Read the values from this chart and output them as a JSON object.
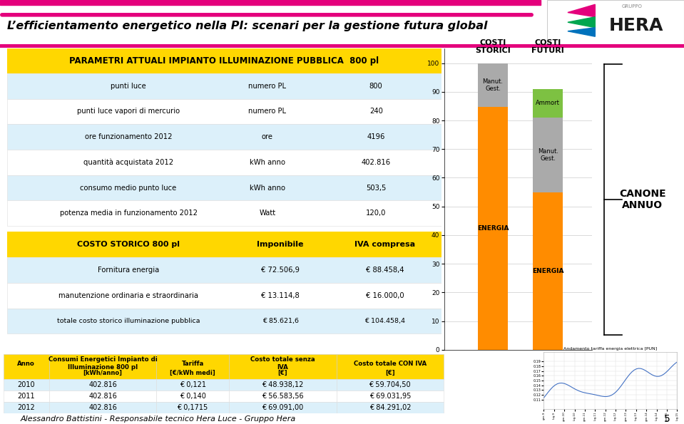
{
  "title": "L’efficientamento energetico nella PI: scenari per la gestione futura global",
  "header_text": "PARAMETRI ATTUALI IMPIANTO ILLUMINAZIONE PUBBLICA  800 pl",
  "param_rows": [
    [
      "punti luce",
      "numero PL",
      "800"
    ],
    [
      "punti luce vapori di mercurio",
      "numero PL",
      "240"
    ],
    [
      "ore funzionamento 2012",
      "ore",
      "4196"
    ],
    [
      "quantità acquistata 2012",
      "kWh anno",
      "402.816"
    ],
    [
      "consumo medio punto luce",
      "kWh anno",
      "503,5"
    ],
    [
      "potenza media in funzionamento 2012",
      "Watt",
      "120,0"
    ]
  ],
  "costo_header": [
    "COSTO STORICO 800 pl",
    "Imponibile",
    "IVA compresa"
  ],
  "costo_rows": [
    [
      "Fornitura energia",
      "€ 72.506,9",
      "€ 88.458,4"
    ],
    [
      "manutenzione ordinaria e straordinaria",
      "€ 13.114,8",
      "€ 16.000,0"
    ],
    [
      "totale costo storico illuminazione pubblica",
      "€ 85.621,6",
      "€ 104.458,4"
    ]
  ],
  "anno_header_row1": [
    "Anno",
    "Consumi Energetici Impianto di\nIlluminazione 800 pl",
    "Tariffa",
    "Costo totale senza\nIVA",
    "Costo totale CON IVA"
  ],
  "anno_header_row2": [
    "",
    "[kWh/anno]",
    "[€/kWh medi]",
    "[€]",
    "[€]"
  ],
  "anno_rows": [
    [
      "2010",
      "402.816",
      "€ 0,121",
      "€ 48.938,12",
      "€ 59.704,50"
    ],
    [
      "2011",
      "402.816",
      "€ 0,140",
      "€ 56.583,56",
      "€ 69.031,95"
    ],
    [
      "2012",
      "402.816",
      "€ 0,1715",
      "€ 69.091,00",
      "€ 84.291,02"
    ]
  ],
  "footer_text": "Alessandro Battistini - Responsabile tecnico Hera Luce - Gruppo Hera",
  "page_number": "5",
  "yellow_color": "#FFD700",
  "table_alt_bg": "#DCF0FA",
  "table_white_bg": "#FFFFFF",
  "orange_color": "#FF8C00",
  "green_color": "#7DC142",
  "gray_color": "#AAAAAA",
  "pink_color": "#E4007C"
}
